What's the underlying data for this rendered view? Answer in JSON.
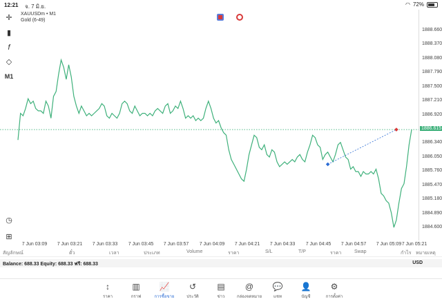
{
  "status": {
    "time": "12:21",
    "date": "จ. 7 มิ.ย.",
    "battery": "72%",
    "battery_level": 0.72
  },
  "chart": {
    "symbol_line": "XAUUSDm • M1",
    "indicator_line": "Gold (6-49)",
    "current_price_label": "1886.615"
  },
  "tools": {
    "timeframe": "M1"
  },
  "colors": {
    "line": "#3db07a",
    "accent": "#2b6cd4",
    "current_price": "#3db07a",
    "trade_line": "#2b6cd4"
  },
  "table": {
    "headers": [
      "สัญลักษณ์",
      "ตั๋ว",
      "เวลา",
      "ประเภท",
      "Volume",
      "ราคา",
      "S/L",
      "T/P",
      "ราคา",
      "Swap",
      "กำไร",
      "หมายเหตุ"
    ]
  },
  "balance": {
    "text": "Balance: 688.33 Equity: 688.33 ฟรี: 688.33",
    "currency": "USD"
  },
  "nav": {
    "items": [
      {
        "label": "ราคา",
        "icon": "↕"
      },
      {
        "label": "กราฟ",
        "icon": "▥"
      },
      {
        "label": "การซื้อขาย",
        "icon": "📈"
      },
      {
        "label": "ประวัติ",
        "icon": "↺"
      },
      {
        "label": "ข่าว",
        "icon": "▤"
      },
      {
        "label": "กล่องจดหมาย",
        "icon": "@"
      },
      {
        "label": "แชท",
        "icon": "💬"
      },
      {
        "label": "บัญชี",
        "icon": "👤"
      },
      {
        "label": "การตั้งค่า",
        "icon": "⚙"
      }
    ]
  },
  "chart_data": {
    "type": "line",
    "y_ticks": [
      "1888.660",
      "1888.370",
      "1888.080",
      "1887.790",
      "1887.500",
      "1887.210",
      "1886.920",
      "1886.630",
      "1886.340",
      "1886.050",
      "1885.760",
      "1885.470",
      "1885.180",
      "1884.890",
      "1884.600"
    ],
    "x_ticks": [
      "7 Jun 03:09",
      "7 Jun 03:21",
      "7 Jun 03:33",
      "7 Jun 03:45",
      "7 Jun 03:57",
      "7 Jun 04:09",
      "7 Jun 04:21",
      "7 Jun 04:33",
      "7 Jun 04:45",
      "7 Jun 04:57",
      "7 Jun 05:09",
      "7 Jun 05:21"
    ],
    "ylim": [
      1884.6,
      1888.66
    ],
    "current_price": 1886.615,
    "trade_from": {
      "x": 122,
      "y": 1885.9
    },
    "trade_to": {
      "x": 149,
      "y": 1886.615
    },
    "series": [
      {
        "values": [
          1886.4,
          1886.95,
          1886.9,
          1887.05,
          1887.25,
          1887.15,
          1887.2,
          1887.05,
          1887.0,
          1887.0,
          1886.95,
          1887.2,
          1887.1,
          1886.85,
          1887.3,
          1887.4,
          1887.75,
          1888.05,
          1887.9,
          1887.65,
          1887.95,
          1887.7,
          1887.3,
          1887.1,
          1886.95,
          1887.1,
          1887.0,
          1886.9,
          1886.95,
          1886.9,
          1886.95,
          1887.0,
          1887.05,
          1887.15,
          1887.1,
          1886.9,
          1886.85,
          1886.95,
          1886.9,
          1886.85,
          1886.95,
          1887.15,
          1887.2,
          1887.15,
          1887.0,
          1886.95,
          1887.1,
          1887.0,
          1886.9,
          1886.95,
          1886.95,
          1886.9,
          1886.95,
          1886.9,
          1887.0,
          1887.05,
          1887.0,
          1886.95,
          1887.1,
          1887.15,
          1886.95,
          1887.0,
          1887.1,
          1887.05,
          1887.2,
          1887.05,
          1886.85,
          1886.9,
          1886.85,
          1886.9,
          1886.8,
          1886.85,
          1886.8,
          1886.85,
          1887.05,
          1887.2,
          1887.05,
          1886.85,
          1886.75,
          1886.8,
          1886.65,
          1886.55,
          1886.5,
          1886.2,
          1886.0,
          1885.9,
          1885.8,
          1885.7,
          1885.6,
          1885.55,
          1885.8,
          1886.1,
          1886.3,
          1886.5,
          1886.45,
          1886.25,
          1886.2,
          1886.3,
          1886.1,
          1886.05,
          1886.2,
          1886.15,
          1885.95,
          1885.85,
          1885.9,
          1885.95,
          1885.9,
          1885.95,
          1886.0,
          1885.95,
          1886.05,
          1886.1,
          1886.0,
          1885.95,
          1886.15,
          1886.3,
          1886.5,
          1886.45,
          1886.3,
          1886.25,
          1886.0,
          1886.1,
          1886.15,
          1886.05,
          1885.95,
          1886.1,
          1886.3,
          1886.35,
          1886.2,
          1886.05,
          1886.0,
          1885.8,
          1885.85,
          1885.75,
          1885.75,
          1885.65,
          1885.75,
          1885.7,
          1885.7,
          1885.75,
          1885.7,
          1885.8,
          1885.6,
          1885.3,
          1885.25,
          1885.15,
          1885.1,
          1884.9,
          1884.6,
          1884.75,
          1885.1,
          1885.4,
          1885.5,
          1885.85,
          1886.3,
          1886.615
        ]
      }
    ]
  }
}
